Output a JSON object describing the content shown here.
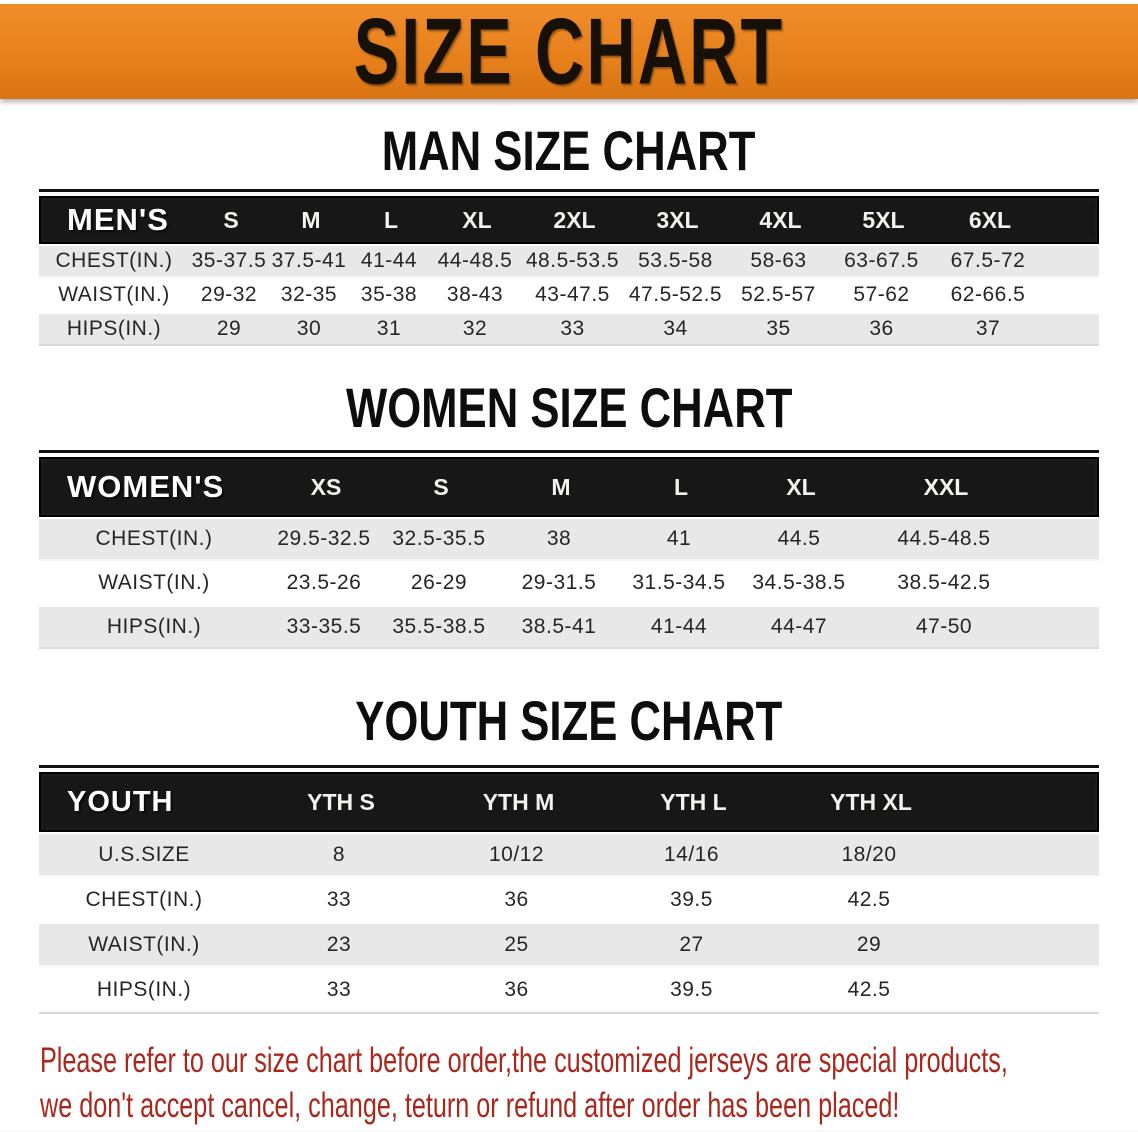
{
  "banner": {
    "title": "SIZE CHART"
  },
  "colors": {
    "banner_bg": "#E8811C",
    "banner_text": "#161006",
    "table_header_bg": "#171717",
    "table_header_text": "#FFFFFF",
    "row_alt_bg": "#E8E8E8",
    "row_text": "#262626",
    "disclaimer_text": "#A8281E"
  },
  "sections": [
    {
      "heading": "MAN SIZE CHART",
      "header": {
        "label": "MEN'S",
        "sizes": [
          "S",
          "M",
          "L",
          "XL",
          "2XL",
          "3XL",
          "4XL",
          "5XL",
          "6XL"
        ]
      },
      "rows": [
        {
          "label": "CHEST(IN.)",
          "values": [
            "35-37.5",
            "37.5-41",
            "41-44",
            "44-48.5",
            "48.5-53.5",
            "53.5-58",
            "58-63",
            "63-67.5",
            "67.5-72"
          ]
        },
        {
          "label": "WAIST(IN.)",
          "values": [
            "29-32",
            "32-35",
            "35-38",
            "38-43",
            "43-47.5",
            "47.5-52.5",
            "52.5-57",
            "57-62",
            "62-66.5"
          ]
        },
        {
          "label": "HIPS(IN.)",
          "values": [
            "29",
            "30",
            "31",
            "32",
            "33",
            "34",
            "35",
            "36",
            "37"
          ]
        }
      ]
    },
    {
      "heading": "WOMEN SIZE CHART",
      "header": {
        "label": "WOMEN'S",
        "sizes": [
          "XS",
          "S",
          "M",
          "L",
          "XL",
          "XXL"
        ]
      },
      "rows": [
        {
          "label": "CHEST(IN.)",
          "values": [
            "29.5-32.5",
            "32.5-35.5",
            "38",
            "41",
            "44.5",
            "44.5-48.5"
          ]
        },
        {
          "label": "WAIST(IN.)",
          "values": [
            "23.5-26",
            "26-29",
            "29-31.5",
            "31.5-34.5",
            "34.5-38.5",
            "38.5-42.5"
          ]
        },
        {
          "label": "HIPS(IN.)",
          "values": [
            "33-35.5",
            "35.5-38.5",
            "38.5-41",
            "41-44",
            "44-47",
            "47-50"
          ]
        }
      ]
    },
    {
      "heading": "YOUTH SIZE CHART",
      "header": {
        "label": "YOUTH",
        "sizes": [
          "YTH S",
          "YTH M",
          "YTH L",
          "YTH XL"
        ]
      },
      "rows": [
        {
          "label": "U.S.SIZE",
          "values": [
            "8",
            "10/12",
            "14/16",
            "18/20"
          ]
        },
        {
          "label": "CHEST(IN.)",
          "values": [
            "33",
            "36",
            "39.5",
            "42.5"
          ]
        },
        {
          "label": "WAIST(IN.)",
          "values": [
            "23",
            "25",
            "27",
            "29"
          ]
        },
        {
          "label": "HIPS(IN.)",
          "values": [
            "33",
            "36",
            "39.5",
            "42.5"
          ]
        }
      ]
    }
  ],
  "disclaimer": {
    "line1": "Please refer to our size chart before order,the customized jerseys are special products,",
    "line2": "we don't accept cancel, change, teturn or refund after order has been placed!"
  }
}
